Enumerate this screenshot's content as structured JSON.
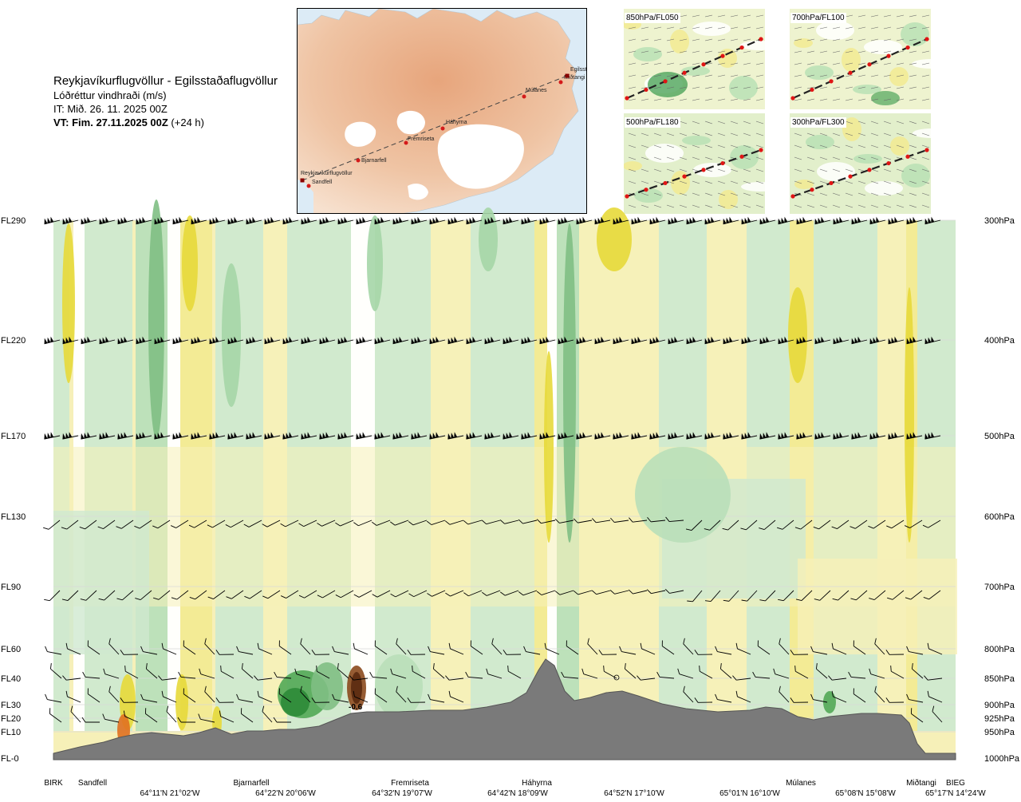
{
  "header": {
    "route": "Reykjavíkurflugvöllur - Egilsstaðaflugvöllur",
    "parameter": "Lóðréttur vindhraði (m/s)",
    "issue_time": "IT: Mið. 26. 11. 2025 00Z",
    "valid_prefix": "VT: Fim. 27.11.2025 00Z",
    "valid_suffix": " (+24 h)"
  },
  "map": {
    "waypoints": [
      "Reykjavíkurflugvöllur",
      "Sandfell",
      "Bjarnarfell",
      "Fremriseta",
      "Háhyrna",
      "Múlanes",
      "Miðtangi",
      "Egilsstaðir"
    ]
  },
  "mini_maps": [
    {
      "label": "850hPa/FL050"
    },
    {
      "label": "700hPa/FL100"
    },
    {
      "label": "500hPa/FL180"
    },
    {
      "label": "300hPa/FL300"
    }
  ],
  "chart_data": {
    "type": "heatmap",
    "title": "",
    "left_axis": [
      "FL290",
      "FL220",
      "FL170",
      "FL130",
      "FL90",
      "FL60",
      "FL40",
      "FL30",
      "FL20",
      "FL10",
      "FL-0"
    ],
    "right_axis": [
      "300hPa",
      "400hPa",
      "500hPa",
      "600hPa",
      "700hPa",
      "800hPa",
      "850hPa",
      "900hPa",
      "925hPa",
      "950hPa",
      "1000hPa"
    ],
    "pressure_levels_hpa": [
      300,
      400,
      500,
      600,
      700,
      800,
      850,
      900,
      925,
      950,
      1000
    ],
    "waypoints": [
      "BIRK",
      "Sandfell",
      "Bjarnarfell",
      "Fremriseta",
      "Háhyrna",
      "Múlanes",
      "Miðtangi",
      "BIEG"
    ],
    "coordinates": [
      "64°11'N 21°02'W",
      "64°22'N 20°06'W",
      "64°32'N 19°07'W",
      "64°42'N 18°09'W",
      "64°52'N 17°10'W",
      "65°01'N 16°10'W",
      "65°08'N 15°08'W",
      "65°17'N 14°24'W"
    ],
    "annotation": "-0.6",
    "legend": "none"
  }
}
